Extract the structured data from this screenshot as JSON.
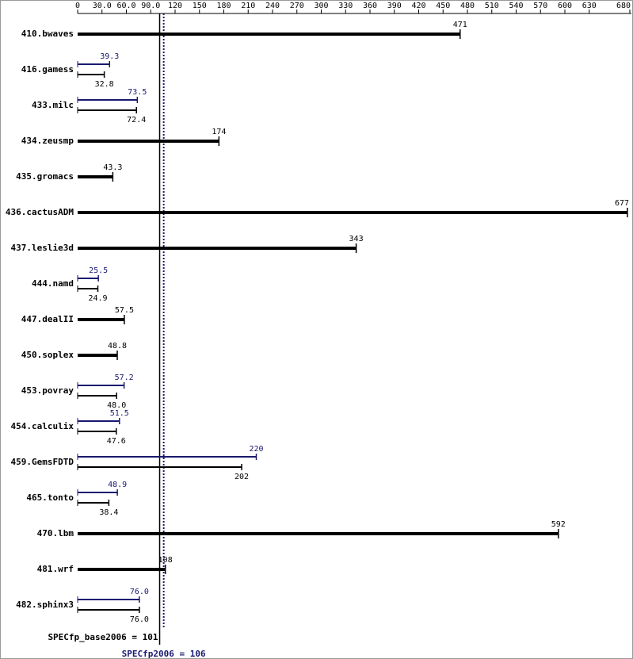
{
  "chart_data": {
    "type": "bar",
    "orientation": "horizontal",
    "categories": [
      "410.bwaves",
      "416.gamess",
      "433.milc",
      "434.zeusmp",
      "435.gromacs",
      "436.cactusADM",
      "437.leslie3d",
      "444.namd",
      "447.dealII",
      "450.soplex",
      "453.povray",
      "454.calculix",
      "459.GemsFDTD",
      "465.tonto",
      "470.lbm",
      "481.wrf",
      "482.sphinx3"
    ],
    "series": [
      {
        "color": "#000000",
        "values": [
          471,
          32.8,
          72.4,
          174,
          43.3,
          677,
          343,
          24.9,
          57.5,
          48.8,
          48.0,
          47.6,
          202,
          38.4,
          592,
          108,
          76.0
        ],
        "value_labels": [
          "471",
          "32.8",
          "72.4",
          "174",
          "43.3",
          "677",
          "343",
          "24.9",
          "57.5",
          "48.8",
          "48.0",
          "47.6",
          "202",
          "38.4",
          "592",
          "108",
          "76.0"
        ]
      },
      {
        "color": "#191970",
        "values": [
          null,
          39.3,
          73.5,
          null,
          null,
          null,
          null,
          25.5,
          null,
          null,
          57.2,
          51.5,
          220,
          48.9,
          null,
          null,
          76.0
        ],
        "value_labels": [
          null,
          "39.3",
          "73.5",
          null,
          null,
          null,
          null,
          "25.5",
          null,
          null,
          "57.2",
          "51.5",
          "220",
          "48.9",
          null,
          null,
          "76.0"
        ]
      }
    ],
    "xlim": [
      0,
      680
    ],
    "xticks": [
      0,
      {
        "value": 30,
        "label": "30.0"
      },
      {
        "value": 60,
        "label": "60.0"
      },
      {
        "value": 90,
        "label": "90.0"
      },
      120,
      150,
      180,
      210,
      240,
      270,
      300,
      330,
      360,
      390,
      420,
      450,
      480,
      510,
      540,
      570,
      600,
      630,
      680
    ],
    "reference_lines": [
      {
        "value": 101,
        "label": "SPECfp_base2006 = 101",
        "color": "#000000",
        "style": "solid"
      },
      {
        "value": 106,
        "label": "SPECfp2006 = 106",
        "color": "#191970",
        "style": "dotted"
      }
    ]
  }
}
